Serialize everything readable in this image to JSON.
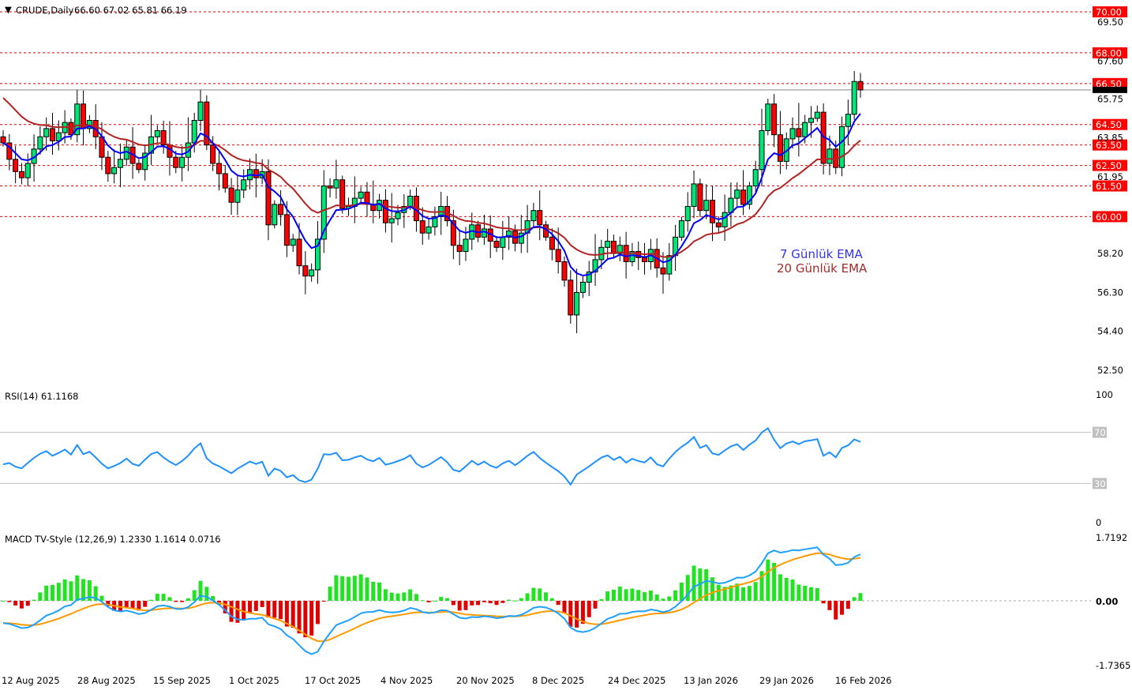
{
  "header": {
    "symbol": "CRUDE,Daily",
    "ohlc": "66.60 67.02 65.81 66.19"
  },
  "colors": {
    "up": "#00e676",
    "down": "#ff0000",
    "ema7": "#0000ff",
    "ema20": "#b22222",
    "rsi": "#1e90ff",
    "macd": "#1ea0ff",
    "signal": "#ff9900",
    "hist_up": "#22e322",
    "hist_down": "#e00000",
    "level": "#e00000"
  },
  "ema_legend": {
    "ema7": "7 Günlük EMA",
    "ema20": "20 Günlük EMA"
  },
  "rsi": {
    "label": "RSI(14) 61.1168",
    "max": "100",
    "min": "0",
    "upper": "70",
    "lower": "30"
  },
  "macd": {
    "label": "MACD TV-Style (12,26,9) 1.2330 1.1614 0.0716",
    "max": "1.7192",
    "zero": "0.00",
    "min": "-1.7365"
  },
  "chart_data": {
    "type": "candlestick",
    "title": "CRUDE, Daily",
    "ylim": [
      52.5,
      70.0
    ],
    "price_ticks": [
      "69.50",
      "67.60",
      "65.75",
      "63.85",
      "61.95",
      "58.20",
      "56.30",
      "54.40",
      "52.50"
    ],
    "levels": [
      "70.00",
      "68.00",
      "66.50",
      "64.50",
      "63.50",
      "62.50",
      "61.50",
      "60.00"
    ],
    "current_price": "66.19",
    "last_bar": {
      "open": 66.6,
      "high": 67.02,
      "low": 65.81,
      "close": 66.19
    },
    "x_labels": [
      "12 Aug 2025",
      "28 Aug 2025",
      "15 Sep 2025",
      "1 Oct 2025",
      "17 Oct 2025",
      "4 Nov 2025",
      "20 Nov 2025",
      "8 Dec 2025",
      "24 Dec 2025",
      "13 Jan 2026",
      "29 Jan 2026",
      "16 Feb 2026"
    ],
    "closes": [
      63.6,
      62.8,
      62.2,
      61.9,
      62.6,
      63.3,
      63.9,
      64.3,
      63.7,
      64.1,
      64.6,
      64.0,
      65.5,
      64.3,
      64.7,
      63.9,
      62.9,
      62.1,
      62.4,
      62.8,
      63.4,
      62.6,
      62.3,
      63.1,
      63.9,
      64.2,
      63.5,
      62.9,
      62.4,
      62.9,
      63.6,
      64.7,
      65.6,
      63.5,
      62.6,
      62.1,
      61.4,
      60.7,
      61.3,
      61.8,
      62.3,
      61.9,
      62.2,
      59.6,
      60.6,
      60.1,
      58.6,
      58.9,
      57.6,
      57.1,
      57.4,
      58.9,
      61.5,
      61.4,
      61.8,
      60.4,
      60.5,
      60.9,
      61.2,
      60.6,
      60.3,
      60.8,
      59.7,
      59.9,
      60.2,
      60.5,
      61.0,
      59.8,
      59.2,
      59.5,
      60.0,
      60.5,
      59.8,
      58.6,
      58.3,
      58.9,
      59.6,
      59.0,
      59.4,
      58.8,
      58.5,
      59.0,
      59.3,
      58.7,
      59.2,
      59.8,
      60.3,
      59.6,
      59.0,
      58.4,
      57.8,
      56.9,
      55.2,
      56.3,
      56.8,
      57.3,
      57.9,
      58.5,
      58.8,
      58.2,
      58.6,
      57.8,
      58.3,
      58.0,
      57.8,
      58.4,
      57.5,
      57.2,
      58.1,
      59.0,
      59.8,
      60.5,
      61.6,
      60.3,
      60.8,
      59.7,
      59.5,
      60.2,
      60.9,
      61.3,
      60.6,
      61.5,
      62.3,
      64.2,
      65.5,
      64.0,
      62.7,
      63.8,
      64.3,
      63.9,
      64.6,
      64.8,
      65.1,
      62.6,
      63.3,
      62.4,
      64.4,
      65.0,
      66.6,
      66.19
    ]
  }
}
